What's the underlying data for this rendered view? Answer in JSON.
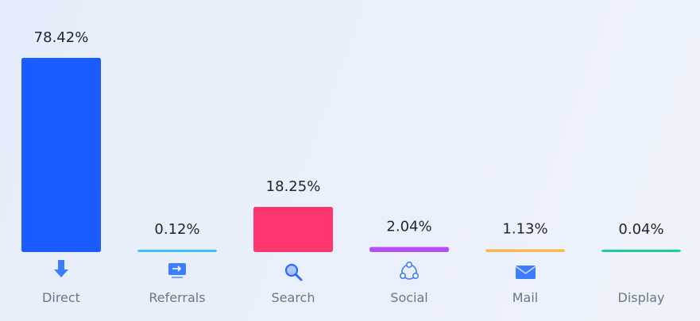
{
  "chart_data": {
    "type": "bar",
    "categories": [
      "Direct",
      "Referrals",
      "Search",
      "Social",
      "Mail",
      "Display"
    ],
    "values": [
      78.42,
      0.12,
      18.25,
      2.04,
      1.13,
      0.04
    ],
    "value_labels": [
      "78.42%",
      "0.12%",
      "18.25%",
      "2.04%",
      "1.13%",
      "0.04%"
    ],
    "colors": [
      "#1a5cff",
      "#33c6f2",
      "#ff3670",
      "#b24ff2",
      "#f6b94c",
      "#1fcb9c"
    ]
  }
}
